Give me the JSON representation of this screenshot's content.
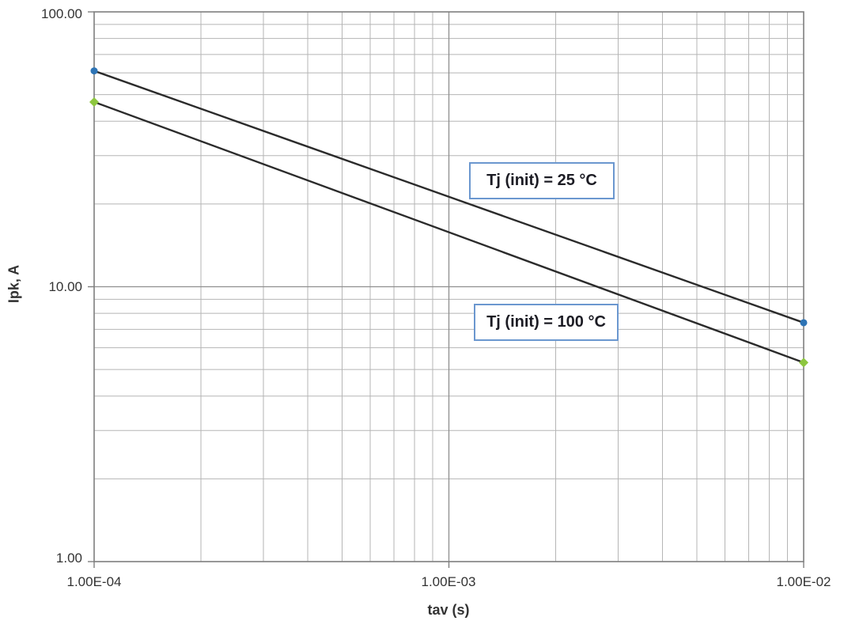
{
  "chart_data": {
    "type": "line",
    "title": "",
    "xlabel": "tav (s)",
    "ylabel": "Ipk, A",
    "x_scale": "log",
    "y_scale": "log",
    "xlim": [
      0.0001,
      0.01
    ],
    "ylim": [
      1,
      100
    ],
    "x_ticks": [
      0.0001,
      0.001,
      0.01
    ],
    "x_tick_labels": [
      "1.00E-04",
      "1.00E-03",
      "1.00E-02"
    ],
    "y_ticks": [
      1,
      10,
      100
    ],
    "y_tick_labels": [
      "1.00",
      "10.00",
      "100.00"
    ],
    "grid": "log major and minor gridlines, both axes",
    "legend": "none (labels are in-plot annotation boxes)",
    "series": [
      {
        "name": "Tj (init) = 25 °C",
        "x": [
          0.0001,
          0.01
        ],
        "y": [
          61,
          7.4
        ],
        "line_color": "#2b2b2b",
        "marker": "circle",
        "marker_color": "#2e74b5"
      },
      {
        "name": "Tj (init) = 100 °C",
        "x": [
          0.0001,
          0.01
        ],
        "y": [
          47,
          5.3
        ],
        "line_color": "#2b2b2b",
        "marker": "diamond",
        "marker_color": "#8dc63f"
      }
    ],
    "annotations": [
      {
        "text": "Tj (init) = 25 °C"
      },
      {
        "text": "Tj (init) = 100 °C"
      }
    ],
    "colors": {
      "background": "#ffffff",
      "axis": "#7f7f7f",
      "grid_minor": "#b5b5b5",
      "grid_major": "#8f8f8f",
      "annotation_border": "#6b97cf",
      "tick_text": "#333333"
    }
  }
}
